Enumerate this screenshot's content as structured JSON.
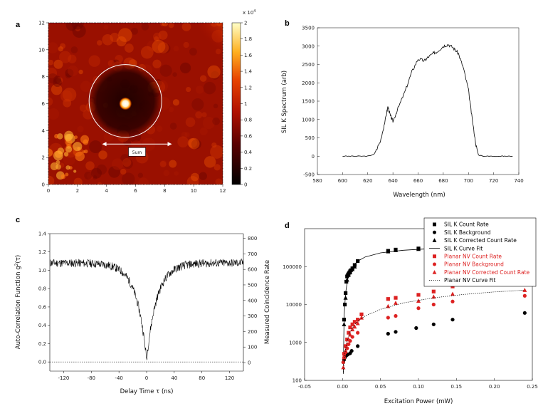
{
  "panels": [
    "a",
    "b",
    "c",
    "d"
  ],
  "chart_data": [
    {
      "panel": "a",
      "type": "heatmap",
      "colorbar": {
        "multiplier": "x 10",
        "exponent": "4",
        "ticks": [
          "2",
          "1.8",
          "1.6",
          "1.4",
          "1.2",
          "1",
          "0.8",
          "0.6",
          "0.4",
          "0.2",
          "0"
        ]
      },
      "xticks": [
        "0",
        "2",
        "4",
        "6",
        "8",
        "10",
        "12"
      ],
      "yticks": [
        "0",
        "2",
        "4",
        "6",
        "8",
        "10",
        "12"
      ],
      "xlim": [
        0,
        12
      ],
      "ylim": [
        0,
        12
      ],
      "circle": {
        "cx": 5.3,
        "cy": 6.2,
        "r": 2.5
      },
      "bright_spot": {
        "x": 5.3,
        "y": 6.0
      },
      "scale_bar": {
        "x1": 3.7,
        "x2": 8.5,
        "y": 3.0,
        "label": "5um"
      }
    },
    {
      "panel": "b",
      "type": "line",
      "ylabel": "SIL K Spectrum (arb)",
      "xlabel": "Wavelength (nm)",
      "xlim": [
        580,
        740
      ],
      "ylim": [
        -500,
        3500
      ],
      "xticks": [
        "580",
        "600",
        "620",
        "640",
        "660",
        "680",
        "700",
        "720",
        "740"
      ],
      "yticks": [
        "-500",
        "0",
        "500",
        "1000",
        "1500",
        "2000",
        "2500",
        "3000",
        "3500"
      ],
      "x": [
        600,
        610,
        620,
        625,
        630,
        634,
        636,
        638,
        640,
        644,
        650,
        655,
        660,
        665,
        668,
        672,
        675,
        680,
        684,
        688,
        692,
        696,
        700,
        703,
        706,
        708,
        712,
        720,
        728,
        735
      ],
      "y": [
        0,
        0,
        0,
        50,
        400,
        1000,
        1350,
        1100,
        950,
        1300,
        1800,
        2300,
        2650,
        2600,
        2700,
        2800,
        2850,
        3000,
        3050,
        2950,
        2800,
        2400,
        1800,
        1000,
        300,
        30,
        0,
        0,
        0,
        0
      ]
    },
    {
      "panel": "c",
      "type": "line",
      "ylabel": "Auto-Correlation Function g",
      "ylabel_sup": "2",
      "ylabel_suffix": "(τ)",
      "y2label": "Measured Coincidence Rate",
      "xlabel": "Delay Time τ (ns)",
      "xlim": [
        -140,
        140
      ],
      "ylim": [
        -0.1,
        1.4
      ],
      "y2lim": [
        -55,
        830
      ],
      "xticks": [
        "-120",
        "-80",
        "-40",
        "0",
        "40",
        "80",
        "120"
      ],
      "yticks": [
        "0.0",
        "0.2",
        "0.4",
        "0.6",
        "0.8",
        "1.0",
        "1.2",
        "1.4"
      ],
      "y2ticks": [
        "0",
        "100",
        "200",
        "300",
        "400",
        "500",
        "600",
        "700",
        "800"
      ],
      "g2_min": 0.03,
      "g2_baseline": 1.08,
      "decay_ns": 15
    },
    {
      "panel": "d",
      "type": "scatter",
      "xlabel": "Excitation Power (mW)",
      "yscale": "log",
      "xlim": [
        -0.05,
        0.25
      ],
      "ylim": [
        100,
        1000000
      ],
      "xticks": [
        "-0.05",
        "0.00",
        "0.05",
        "0.10",
        "0.15",
        "0.20",
        "0.25"
      ],
      "yticks": [
        "100",
        "1000",
        "10000",
        "100000"
      ],
      "legend_position": "top-right",
      "series": [
        {
          "name": "SIL K Count Rate",
          "color": "#000000",
          "marker": "square",
          "x": [
            0.002,
            0.003,
            0.004,
            0.005,
            0.006,
            0.007,
            0.008,
            0.009,
            0.01,
            0.011,
            0.013,
            0.016,
            0.02,
            0.06,
            0.07,
            0.1,
            0.12
          ],
          "y": [
            4000,
            10000,
            20000,
            40000,
            55000,
            60000,
            65000,
            70000,
            75000,
            80000,
            90000,
            110000,
            140000,
            260000,
            280000,
            300000,
            320000
          ]
        },
        {
          "name": "SIL K Background",
          "color": "#000000",
          "marker": "circle",
          "x": [
            0.001,
            0.002,
            0.003,
            0.005,
            0.007,
            0.01,
            0.012,
            0.02,
            0.06,
            0.07,
            0.097,
            0.12,
            0.145,
            0.24
          ],
          "y": [
            300,
            350,
            400,
            450,
            480,
            520,
            600,
            800,
            1700,
            1900,
            2400,
            3000,
            4000,
            6000
          ]
        },
        {
          "name": "SIL K Corrected Count Rate",
          "color": "#000000",
          "marker": "triangle",
          "x": [
            0.002,
            0.004,
            0.006,
            0.008,
            0.01,
            0.013,
            0.016,
            0.06,
            0.07,
            0.1
          ],
          "y": [
            3000,
            15000,
            45000,
            60000,
            70000,
            85000,
            100000,
            250000,
            270000,
            290000
          ]
        },
        {
          "name": "SIL K Curve Fit",
          "color": "#000000",
          "marker": "line",
          "x": [
            0.001,
            0.002,
            0.004,
            0.007,
            0.01,
            0.015,
            0.02,
            0.03,
            0.05,
            0.08,
            0.12,
            0.16,
            0.2,
            0.24
          ],
          "y": [
            150,
            5000,
            20000,
            50000,
            80000,
            110000,
            140000,
            180000,
            230000,
            270000,
            300000,
            320000,
            335000,
            345000
          ]
        },
        {
          "name": "Planar NV Count Rate",
          "color": "#dd2222",
          "marker": "square",
          "x": [
            0.002,
            0.004,
            0.006,
            0.008,
            0.01,
            0.013,
            0.016,
            0.02,
            0.025,
            0.06,
            0.07,
            0.1,
            0.12,
            0.145,
            0.24
          ],
          "y": [
            500,
            800,
            1200,
            1800,
            2500,
            3000,
            3500,
            4000,
            5500,
            14000,
            15000,
            18000,
            22000,
            30000,
            40000
          ]
        },
        {
          "name": "Planar NV Background",
          "color": "#dd2222",
          "marker": "circle",
          "x": [
            0.001,
            0.002,
            0.004,
            0.006,
            0.008,
            0.01,
            0.013,
            0.02,
            0.06,
            0.07,
            0.1,
            0.12,
            0.145,
            0.24
          ],
          "y": [
            300,
            400,
            550,
            700,
            900,
            1100,
            1400,
            1800,
            4500,
            5000,
            8000,
            10000,
            12000,
            17000
          ]
        },
        {
          "name": "Planar NV Corrected Count Rate",
          "color": "#dd2222",
          "marker": "triangle",
          "x": [
            0.001,
            0.002,
            0.004,
            0.006,
            0.008,
            0.01,
            0.013,
            0.016,
            0.02,
            0.025,
            0.06,
            0.07,
            0.1,
            0.12,
            0.145,
            0.24
          ],
          "y": [
            220,
            400,
            600,
            900,
            1200,
            1600,
            2200,
            2600,
            3200,
            4500,
            9000,
            11000,
            12500,
            16000,
            19000,
            24000
          ]
        },
        {
          "name": "Planar NV Curve Fit",
          "color": "#000000",
          "marker": "dotted",
          "x": [
            0.001,
            0.003,
            0.006,
            0.01,
            0.015,
            0.02,
            0.03,
            0.05,
            0.08,
            0.12,
            0.16,
            0.2,
            0.24
          ],
          "y": [
            150,
            500,
            1100,
            1900,
            2800,
            3600,
            5000,
            7500,
            11000,
            15000,
            18500,
            21500,
            24000
          ]
        }
      ]
    }
  ]
}
